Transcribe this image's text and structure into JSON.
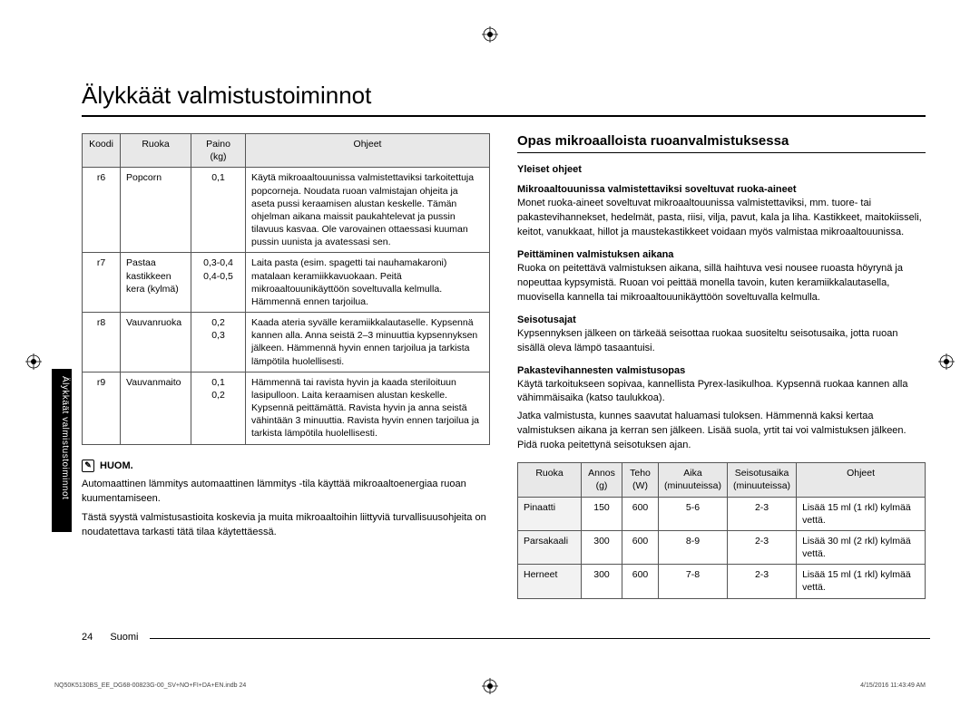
{
  "page_title": "Älykkäät valmistustoiminnot",
  "side_tab": "Älykkäät valmistustoiminnot",
  "table1": {
    "headers": [
      "Koodi",
      "Ruoka",
      "Paino (kg)",
      "Ohjeet"
    ],
    "rows": [
      {
        "code": "r6",
        "food": "Popcorn",
        "weight": "0,1",
        "instr": "Käytä mikroaaltouunissa valmistettaviksi tarkoitettuja popcorneja. Noudata ruoan valmistajan ohjeita ja aseta pussi keraamisen alustan keskelle. Tämän ohjelman aikana maissit paukahtelevat ja pussin tilavuus kasvaa. Ole varovainen ottaessasi kuuman pussin uunista ja avatessasi sen."
      },
      {
        "code": "r7",
        "food": "Pastaa kastikkeen kera (kylmä)",
        "weight": "0,3-0,4\n0,4-0,5",
        "instr": "Laita pasta (esim. spagetti tai nauhamakaroni) matalaan keramiikkavuokaan. Peitä mikroaaltouunikäyttöön soveltuvalla kelmulla. Hämmennä ennen tarjoilua."
      },
      {
        "code": "r8",
        "food": "Vauvanruoka",
        "weight": "0,2\n0,3",
        "instr": "Kaada ateria syvälle keramiikkalautaselle. Kypsennä kannen alla. Anna seistä 2–3 minuuttia kypsennyksen jälkeen. Hämmennä hyvin ennen tarjoilua ja tarkista lämpötila huolellisesti."
      },
      {
        "code": "r9",
        "food": "Vauvanmaito",
        "weight": "0,1\n0,2",
        "instr": "Hämmennä tai ravista hyvin ja kaada steriloituun lasipulloon. Laita keraamisen alustan keskelle. Kypsennä peittämättä. Ravista hyvin ja anna seistä vähintään 3 minuuttia. Ravista hyvin ennen tarjoilua ja tarkista lämpötila huolellisesti."
      }
    ]
  },
  "note_label": "HUOM.",
  "note_body_1": "Automaattinen lämmitys automaattinen lämmitys -tila käyttää mikroaaltoenergiaa ruoan kuumentamiseen.",
  "note_body_2": "Tästä syystä valmistusastioita koskevia ja muita mikroaaltoihin liittyviä turvallisuusohjeita on noudatettava tarkasti tätä tilaa käytettäessä.",
  "right_title": "Opas mikroaalloista ruoanvalmistuksessa",
  "s1": {
    "h": "Yleiset ohjeet"
  },
  "s2": {
    "h": "Mikroaaltouunissa valmistettaviksi soveltuvat ruoka-aineet",
    "p": "Monet ruoka-aineet soveltuvat mikroaaltouunissa valmistettaviksi, mm. tuore- tai pakastevihannekset, hedelmät, pasta, riisi, vilja, pavut, kala ja liha. Kastikkeet, maitokiisseli, keitot, vanukkaat, hillot ja maustekastikkeet voidaan myös valmistaa mikroaaltouunissa."
  },
  "s3": {
    "h": "Peittäminen valmistuksen aikana",
    "p": "Ruoka on peitettävä valmistuksen aikana, sillä haihtuva vesi nousee ruoasta höyrynä ja nopeuttaa kypsymistä. Ruoan voi peittää monella tavoin, kuten keramiikkalautasella, muovisella kannella tai mikroaaltouunikäyttöön soveltuvalla kelmulla."
  },
  "s4": {
    "h": "Seisotusajat",
    "p": "Kypsennyksen jälkeen on tärkeää seisottaa ruokaa suositeltu seisotusaika, jotta ruoan sisällä oleva lämpö tasaantuisi."
  },
  "s5": {
    "h": "Pakastevihannesten valmistusopas",
    "p1": "Käytä tarkoitukseen sopivaa, kannellista Pyrex-lasikulhoa. Kypsennä ruokaa kannen alla vähimmäisaika (katso taulukkoa).",
    "p2": "Jatka valmistusta, kunnes saavutat haluamasi tuloksen. Hämmennä kaksi kertaa valmistuksen aikana ja kerran sen jälkeen. Lisää suola, yrtit tai voi valmistuksen jälkeen. Pidä ruoka peitettynä seisotuksen ajan."
  },
  "table2": {
    "headers": [
      "Ruoka",
      "Annos (g)",
      "Teho (W)",
      "Aika (minuuteissa)",
      "Seisotusaika (minuuteissa)",
      "Ohjeet"
    ],
    "rows": [
      {
        "food": "Pinaatti",
        "portion": "150",
        "power": "600",
        "time": "5-6",
        "stand": "2-3",
        "instr": "Lisää 15 ml (1 rkl) kylmää vettä."
      },
      {
        "food": "Parsakaali",
        "portion": "300",
        "power": "600",
        "time": "8-9",
        "stand": "2-3",
        "instr": "Lisää 30 ml (2 rkl) kylmää vettä."
      },
      {
        "food": "Herneet",
        "portion": "300",
        "power": "600",
        "time": "7-8",
        "stand": "2-3",
        "instr": "Lisää 15 ml (1 rkl) kylmää vettä."
      }
    ]
  },
  "footer": {
    "page": "24",
    "lang": "Suomi",
    "file": "NQ50K5130BS_EE_DG68-00823G-00_SV+NO+FI+DA+EN.indb   24",
    "date": "4/15/2016   11:43:49 AM"
  }
}
